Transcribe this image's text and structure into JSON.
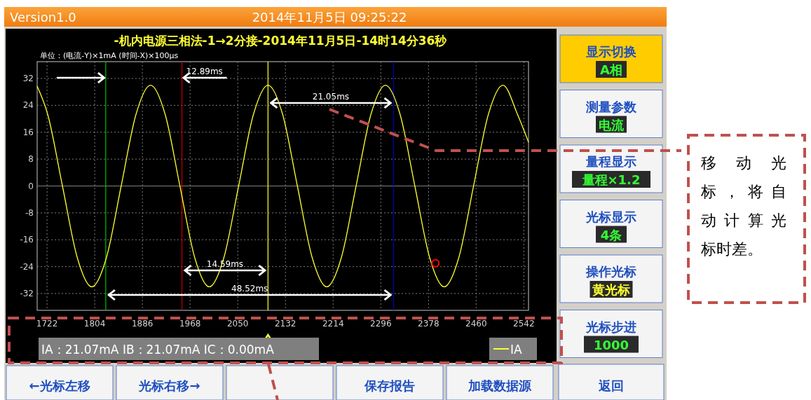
{
  "chart_data": {
    "type": "line",
    "title": "-机内电源三相法-1→2分接-2014年11月5日-14时14分36秒",
    "subtitle": "单位：(电流-Y)×1mA  (时间-X)×100μs",
    "xlim": [
      1705,
      2550
    ],
    "xticks": [
      1722,
      1804,
      1886,
      1968,
      2050,
      2132,
      2214,
      2296,
      2378,
      2460,
      2542
    ],
    "ylim": [
      -37,
      37
    ],
    "yticks": [
      -32,
      -24,
      -16,
      -8,
      0,
      8,
      16,
      24,
      32
    ],
    "grid": true,
    "legend": "bottom right",
    "line_style": "solid",
    "series": [
      {
        "name": "IA",
        "color": "#ffff33",
        "marker": "none",
        "x": [
          1705,
          1723.3,
          1748.5,
          1773.8,
          1799,
          1824.3,
          1849.5,
          1874.8,
          1900,
          1925.3,
          1950.5,
          1975.8,
          2001,
          2026.3,
          2051.5,
          2076.8,
          2102,
          2127.3,
          2152.5,
          2177.8,
          2203,
          2228.3,
          2253.5,
          2278.8,
          2304,
          2329.3,
          2354.5,
          2379.8,
          2405,
          2430.3,
          2455.5,
          2480.8,
          2506,
          2531.3,
          2550
        ],
        "values": [
          29.7,
          21.2,
          0,
          -21.2,
          -30,
          -21.2,
          0,
          21.2,
          30,
          21.2,
          0,
          -21.2,
          -30,
          -21.2,
          0,
          21.2,
          30,
          21.2,
          0,
          -21.2,
          -30,
          -21.2,
          0,
          21.2,
          30,
          21.2,
          0,
          -21.2,
          -30,
          -21.2,
          0,
          21.2,
          30,
          21.2,
          13
        ]
      },
      {
        "type": "scatter",
        "color": "#ff0000",
        "marker": "circle",
        "x": [
          2390
        ],
        "values": [
          -23
        ]
      }
    ],
    "ref_lines": [
      {
        "axis": "y",
        "value": 0,
        "color": "#808080"
      },
      {
        "axis": "x",
        "value": 1823,
        "color": "#00c000"
      },
      {
        "axis": "x",
        "value": 1954,
        "color": "#c00000"
      },
      {
        "axis": "x",
        "value": 2102,
        "color": "#ffff33"
      },
      {
        "axis": "x",
        "value": 2318,
        "color": "#0000c8"
      }
    ],
    "annotations": [
      "Version1.0",
      "2014年11月5日 09:25:22",
      "IA：21.07mA  IB：21.07mA  IC：0.00mA",
      "移动光标，将自动计算光标时差。",
      "显示切换",
      "A相",
      "测量参数",
      "电流",
      "量程显示",
      "量程×1.2",
      "光标显示",
      "4条",
      "操作光标",
      "黄光标",
      "光标步进",
      "1000",
      "返回",
      "←光标左移",
      "光标右移→",
      "保存报告",
      "加载数据源",
      "12.89ms",
      "21.05ms",
      "14.59ms",
      "48.52ms"
    ]
  }
}
